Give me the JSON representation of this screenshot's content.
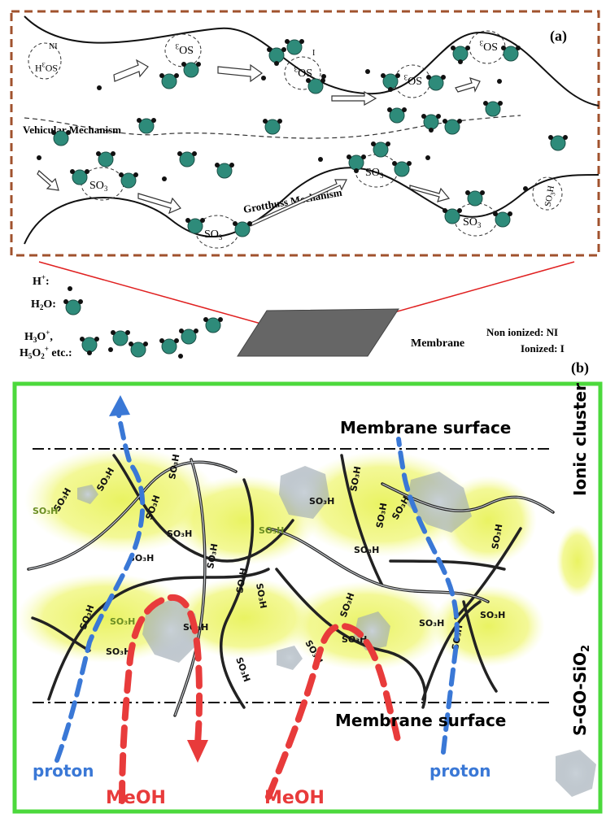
{
  "panel_a": {
    "label": "(a)",
    "ni_tag": "NI",
    "i_tag": "I",
    "vehicular": "Vehicular Mechanism",
    "grotthuss": "Grotthuss Mechanism",
    "so3": "SO",
    "so3_sub": "3",
    "so3h": "SO",
    "so3h_sub": "3",
    "so3h_h": "H",
    "border_color": "#a0522d"
  },
  "legend": {
    "h_plus": "H",
    "h_plus_sup": "+",
    "h_plus_colon": ":",
    "h2o_pre": "H",
    "h2o_sub": "2",
    "h2o_post": "O:",
    "h3o_line1_pre": "H",
    "h3o_line1_sub": "3",
    "h3o_line1_post": "O",
    "h3o_line1_sup": "+",
    "h3o_line1_comma": ",",
    "h5o2_pre": "H",
    "h5o2_sub1": "5",
    "h5o2_mid": "O",
    "h5o2_sub2": "2",
    "h5o2_sup": "+",
    "h5o2_post": " etc.:",
    "membrane": "Membrane",
    "non_ionized": "Non ionized: NI",
    "ionized": "Ionized: I",
    "panel_b_label": "(b)"
  },
  "panel_b": {
    "membrane_surface_top": "Membrane surface",
    "membrane_surface_bottom": "Membrane surface",
    "ionic_cluster": "Ionic cluster",
    "sgo_sio2": "S-GO-SiO",
    "sgo_sub": "2",
    "proton_left": "proton",
    "proton_right": "proton",
    "meoh_left": "MeOH",
    "meoh_right": "MeOH",
    "so3h_label": "SO₃H",
    "border_color": "#4cd93c",
    "proton_color": "#3a78d6",
    "meoh_color": "#e83b3b",
    "cluster_color": "#eef56a"
  }
}
